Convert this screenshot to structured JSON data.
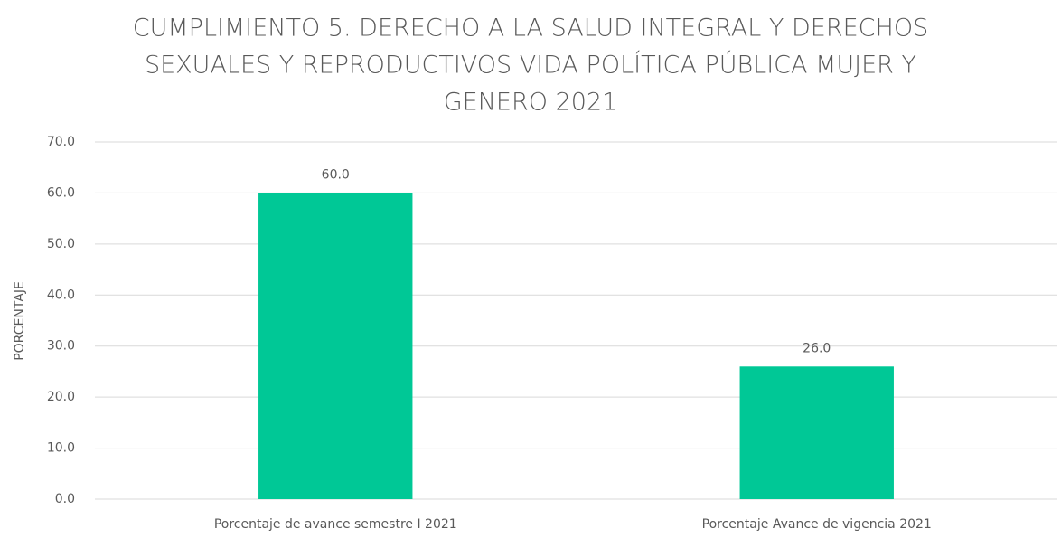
{
  "chart_data": {
    "type": "bar",
    "title": [
      "CUMPLIMIENTO 5. DERECHO A LA SALUD INTEGRAL Y DERECHOS",
      "SEXUALES Y REPRODUCTIVOS VIDA POLÍTICA PÚBLICA MUJER Y",
      "GENERO 2021"
    ],
    "y_label": "PORCENTAJE",
    "categories": [
      "Porcentaje de avance semestre I 2021",
      "Porcentaje Avance de vigencia 2021"
    ],
    "values": [
      60,
      26
    ],
    "value_labels": [
      "60.0",
      "26.0"
    ],
    "color": "#00c896",
    "ylim": [
      0,
      70
    ],
    "yticks": [
      {
        "value": 0,
        "label": "0.0"
      },
      {
        "value": 10,
        "label": "10.0"
      },
      {
        "value": 20,
        "label": "20.0"
      },
      {
        "value": 30,
        "label": "30.0"
      },
      {
        "value": 40,
        "label": "40.0"
      },
      {
        "value": 50,
        "label": "50.0"
      },
      {
        "value": 60,
        "label": "60.0"
      },
      {
        "value": 70,
        "label": "70.0"
      }
    ],
    "grid": true
  }
}
